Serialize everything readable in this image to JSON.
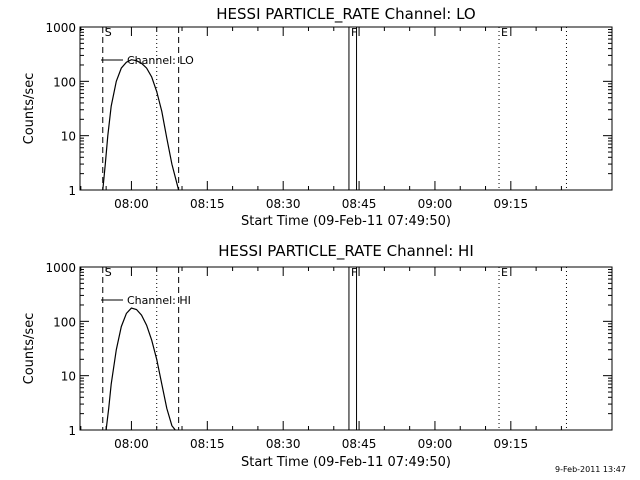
{
  "chart_data": [
    {
      "type": "line",
      "title": "HESSI PARTICLE_RATE Channel: LO",
      "ylabel": "Counts/sec",
      "xlabel": "Start Time (09-Feb-11 07:49:50)",
      "yscale": "log",
      "ylim": [
        1,
        1000
      ],
      "yticks": [
        {
          "value": 1,
          "label": "1"
        },
        {
          "value": 10,
          "label": "10"
        },
        {
          "value": 100,
          "label": "100"
        },
        {
          "value": 1000,
          "label": "1000"
        }
      ],
      "xlim": [
        "07:49:50",
        "09:35:00"
      ],
      "xticks": [
        "08:00",
        "08:15",
        "08:30",
        "08:45",
        "09:00",
        "09:15"
      ],
      "legend": "Channel: LO",
      "markers": [
        {
          "label": "S",
          "time": "07:54:20",
          "style": "dashed"
        },
        {
          "label": "",
          "time": "08:09:20",
          "style": "dashed"
        },
        {
          "label": "",
          "time": "08:05:00",
          "style": "dotted"
        },
        {
          "label": "F",
          "time": "08:43:00",
          "style": "solid"
        },
        {
          "label": "",
          "time": "08:44:30",
          "style": "solid"
        },
        {
          "label": "E",
          "time": "09:12:40",
          "style": "dotted"
        },
        {
          "label": "",
          "time": "09:26:00",
          "style": "dotted"
        }
      ],
      "series": [
        {
          "name": "Channel: LO",
          "x": [
            "07:54:20",
            "07:54:50",
            "07:55:20",
            "07:56:00",
            "07:57:00",
            "07:58:00",
            "07:59:00",
            "08:00:00",
            "08:01:00",
            "08:02:00",
            "08:03:00",
            "08:04:00",
            "08:05:00",
            "08:06:00",
            "08:07:00",
            "08:08:00",
            "08:09:00",
            "08:09:20"
          ],
          "y": [
            1,
            3,
            10,
            35,
            100,
            175,
            225,
            250,
            240,
            215,
            175,
            120,
            65,
            28,
            9,
            3,
            1.3,
            1
          ]
        }
      ]
    },
    {
      "type": "line",
      "title": "HESSI PARTICLE_RATE Channel: HI",
      "ylabel": "Counts/sec",
      "xlabel": "Start Time (09-Feb-11 07:49:50)",
      "yscale": "log",
      "ylim": [
        1,
        1000
      ],
      "yticks": [
        {
          "value": 1,
          "label": "1"
        },
        {
          "value": 10,
          "label": "10"
        },
        {
          "value": 100,
          "label": "100"
        },
        {
          "value": 1000,
          "label": "1000"
        }
      ],
      "xlim": [
        "07:49:50",
        "09:35:00"
      ],
      "xticks": [
        "08:00",
        "08:15",
        "08:30",
        "08:45",
        "09:00",
        "09:15"
      ],
      "legend": "Channel: HI",
      "markers": [
        {
          "label": "S",
          "time": "07:54:20",
          "style": "dashed"
        },
        {
          "label": "",
          "time": "08:09:20",
          "style": "dashed"
        },
        {
          "label": "",
          "time": "08:05:00",
          "style": "dotted"
        },
        {
          "label": "F",
          "time": "08:43:00",
          "style": "solid"
        },
        {
          "label": "",
          "time": "08:44:30",
          "style": "solid"
        },
        {
          "label": "E",
          "time": "09:12:40",
          "style": "dotted"
        },
        {
          "label": "",
          "time": "09:26:00",
          "style": "dotted"
        }
      ],
      "series": [
        {
          "name": "Channel: HI",
          "x": [
            "07:55:00",
            "07:55:30",
            "07:56:00",
            "07:57:00",
            "07:58:00",
            "07:59:00",
            "08:00:00",
            "08:01:00",
            "08:02:00",
            "08:03:00",
            "08:04:00",
            "08:05:00",
            "08:06:00",
            "08:07:00",
            "08:08:00",
            "08:08:40"
          ],
          "y": [
            1,
            2.5,
            7,
            30,
            80,
            140,
            175,
            165,
            130,
            85,
            45,
            20,
            7,
            2.5,
            1.2,
            1
          ]
        }
      ]
    }
  ],
  "footer": {
    "stamp": "9-Feb-2011 13:47"
  }
}
